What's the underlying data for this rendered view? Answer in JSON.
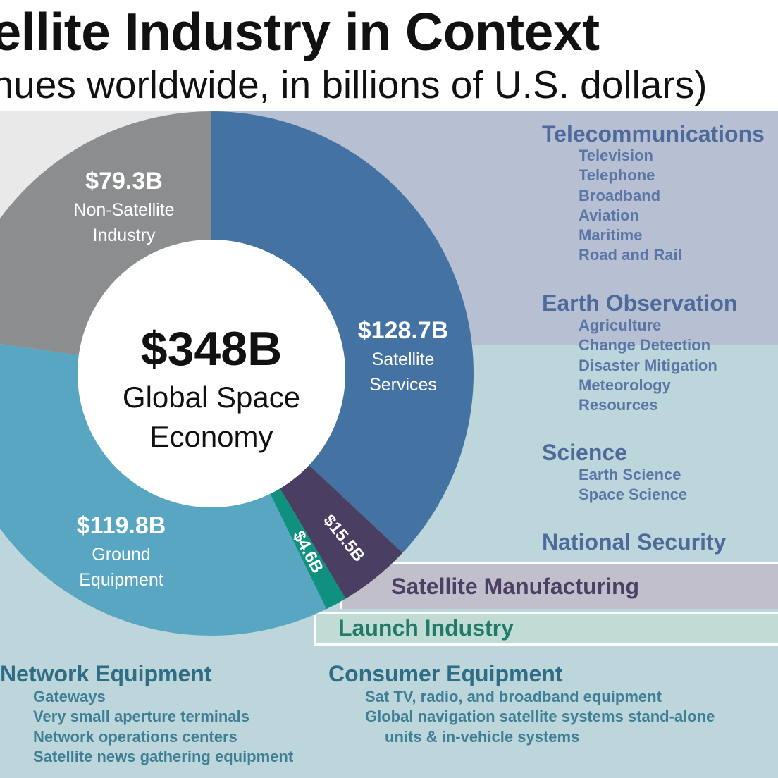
{
  "title": "tellite Industry in Context",
  "subtitle": "enues worldwide, in billions of U.S. dollars)",
  "center": {
    "total": "$348B",
    "label_line1": "Global Space",
    "label_line2": "Economy"
  },
  "colors": {
    "satellite_services": "#4472a2",
    "satellite_manufacturing": "#4a3e62",
    "launch_industry": "#10907f",
    "ground_equipment": "#58a6c1",
    "non_satellite_industry": "#8c8d8f"
  },
  "chart_data": {
    "type": "pie",
    "title": "tellite Industry in Context",
    "subtitle": "enues worldwide, in billions of U.S. dollars)",
    "unit": "billions of U.S. dollars",
    "total": 348,
    "slices": [
      {
        "name": "Satellite Services",
        "value": 128.7,
        "value_label": "$128.7B",
        "label_lines": [
          "Satellite",
          "Services"
        ]
      },
      {
        "name": "Satellite Manufacturing",
        "value": 15.5,
        "value_label": "$15.5B",
        "label_lines": []
      },
      {
        "name": "Launch Industry",
        "value": 4.6,
        "value_label": "$4.6B",
        "label_lines": []
      },
      {
        "name": "Ground Equipment",
        "value": 119.8,
        "value_label": "$119.8B",
        "label_lines": [
          "Ground",
          "Equipment"
        ]
      },
      {
        "name": "Non-Satellite Industry",
        "value": 79.3,
        "value_label": "$79.3B",
        "label_lines": [
          "Non-Satellite",
          "Industry"
        ]
      }
    ]
  },
  "services_categories": [
    {
      "heading": "Telecommunications",
      "items": [
        "Television",
        "Telephone",
        "Broadband",
        "Aviation",
        "Maritime",
        "Road and Rail"
      ]
    },
    {
      "heading": "Earth Observation",
      "items": [
        "Agriculture",
        "Change Detection",
        "Disaster Mitigation",
        "Meteorology",
        "Resources"
      ]
    },
    {
      "heading": "Science",
      "items": [
        "Earth Science",
        "Space Science"
      ]
    },
    {
      "heading": "National Security",
      "items": []
    }
  ],
  "manufacturing_label": "Satellite Manufacturing",
  "launch_label": "Launch Industry",
  "ground_categories": {
    "network": {
      "heading": "Network Equipment",
      "items": [
        "Gateways",
        "Very small aperture terminals",
        "Network operations centers",
        "Satellite news gathering equipment"
      ]
    },
    "consumer": {
      "heading": "Consumer Equipment",
      "items": [
        "Sat TV, radio, and broadband equipment",
        "Global navigation satellite systems stand-alone",
        "units & in-vehicle systems"
      ]
    }
  }
}
